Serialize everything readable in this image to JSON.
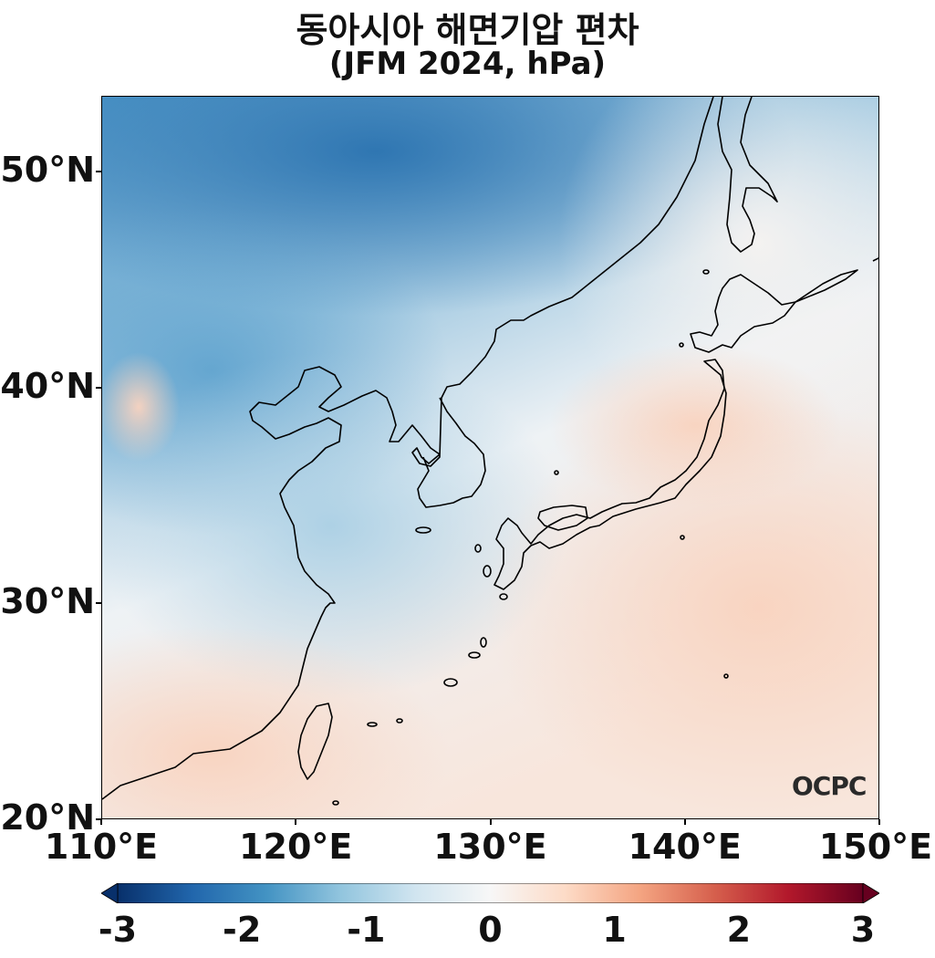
{
  "title": {
    "line1": "동아시아 해면기압 편차",
    "line2": "(JFM 2024, hPa)"
  },
  "map": {
    "projection": "PlateCarree",
    "lon_range": [
      110,
      150
    ],
    "lat_range": [
      20,
      53.5
    ],
    "variable": "sea level pressure anomaly",
    "colormap": "RdBu_r",
    "coastline_color": "#000000",
    "lat_ticks": [
      {
        "value": 50,
        "label": "50°N"
      },
      {
        "value": 40,
        "label": "40°N"
      },
      {
        "value": 30,
        "label": "30°N"
      },
      {
        "value": 20,
        "label": "20°N"
      }
    ],
    "lon_ticks": [
      {
        "value": 110,
        "label": "110°E"
      },
      {
        "value": 120,
        "label": "120°E"
      },
      {
        "value": 130,
        "label": "130°E"
      },
      {
        "value": 140,
        "label": "140°E"
      },
      {
        "value": 150,
        "label": "150°E"
      }
    ]
  },
  "colorbar": {
    "range": [
      -3,
      3
    ],
    "extend": "both",
    "ticks": [
      {
        "value": -3,
        "label": "-3"
      },
      {
        "value": -2,
        "label": "-2"
      },
      {
        "value": -1,
        "label": "-1"
      },
      {
        "value": 0,
        "label": "0"
      },
      {
        "value": 1,
        "label": "1"
      },
      {
        "value": 2,
        "label": "2"
      },
      {
        "value": 3,
        "label": "3"
      }
    ],
    "stops": [
      "#08306b",
      "#2166ac",
      "#4393c3",
      "#92c5de",
      "#d1e5f0",
      "#f7f7f7",
      "#fddbc7",
      "#f4a582",
      "#d6604d",
      "#b2182b",
      "#67001f"
    ]
  },
  "watermark": "OCPC",
  "colors": {
    "strong_negative": "#2f7bb6",
    "weak_negative": "#a9cfe4",
    "neutral": "#f4f4f4",
    "weak_positive": "#fbe3d6",
    "positive": "#f9d5c2"
  }
}
